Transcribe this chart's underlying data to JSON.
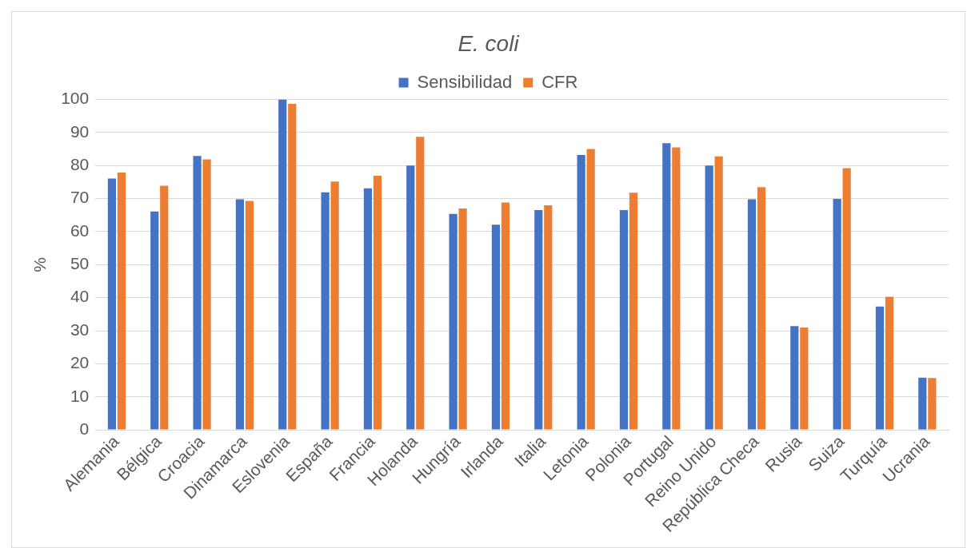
{
  "chart_data": {
    "type": "bar",
    "title": "E. coli",
    "ylabel": "%",
    "categories": [
      "Alemania",
      "Bélgica",
      "Croacia",
      "Dinamarca",
      "Eslovenia",
      "España",
      "Francia",
      "Holanda",
      "Hungría",
      "Irlanda",
      "Italia",
      "Letonia",
      "Polonia",
      "Portugal",
      "Reino Unido",
      "República Checa",
      "Rusia",
      "Suiza",
      "Turquía",
      "Ucrania"
    ],
    "series": [
      {
        "name": "Sensibilidad",
        "color": "#4472c4",
        "values": [
          76.1,
          66.1,
          82.9,
          69.8,
          100,
          71.9,
          73.1,
          80,
          65.4,
          62.1,
          66.5,
          83.2,
          66.5,
          86.8,
          80,
          69.8,
          31.4,
          69.9,
          37.3,
          15.8
        ]
      },
      {
        "name": "CFR",
        "color": "#ed7d31",
        "values": [
          77.9,
          73.9,
          81.9,
          69.3,
          98.7,
          75.2,
          76.9,
          88.7,
          67,
          68.8,
          68,
          85,
          71.8,
          85.5,
          82.8,
          73.5,
          31,
          79.2,
          40.3,
          15.7
        ]
      }
    ],
    "ylim": [
      0,
      100
    ],
    "yticks": [
      0,
      10,
      20,
      30,
      40,
      50,
      60,
      70,
      80,
      90,
      100
    ],
    "grid": "y",
    "legend": "top"
  }
}
